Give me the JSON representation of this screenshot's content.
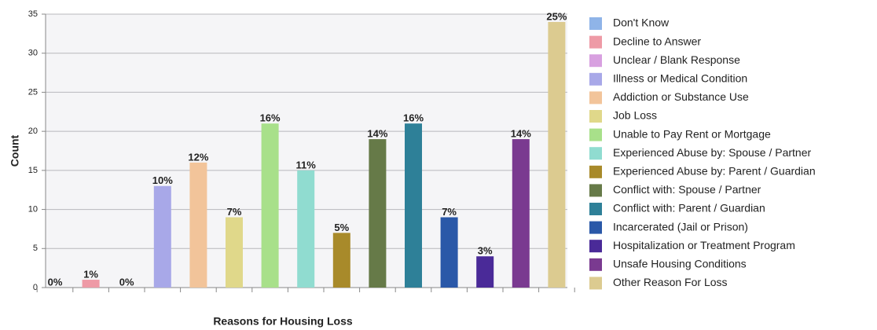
{
  "chart_data": {
    "type": "bar",
    "x_label": "Reasons for Housing Loss",
    "y_label": "Count",
    "categories": [
      "Don't Know",
      "Decline to Answer",
      "Unclear / Blank Response",
      "Illness or Medical Condition",
      "Addiction or Substance Use",
      "Job Loss",
      "Unable to Pay Rent or Mortgage",
      "Experienced Abuse by: Spouse / Partner",
      "Experienced Abuse by: Parent / Guardian",
      "Conflict with: Spouse / Partner",
      "Conflict with: Parent / Guardian",
      "Incarcerated (Jail or Prison)",
      "Hospitalization or Treatment Program",
      "Unsafe Housing Conditions",
      "Other Reason For Loss"
    ],
    "values": [
      0,
      1,
      0,
      13,
      16,
      9,
      21,
      15,
      7,
      19,
      21,
      9,
      4,
      19,
      34
    ],
    "value_labels": [
      "0%",
      "1%",
      "0%",
      "10%",
      "12%",
      "7%",
      "16%",
      "11%",
      "5%",
      "14%",
      "16%",
      "7%",
      "3%",
      "14%",
      "25%"
    ],
    "colors": [
      "#8fb4e8",
      "#ee9aa6",
      "#d8a0e0",
      "#a8a8e8",
      "#f2c49a",
      "#e0d88a",
      "#a8e08a",
      "#90dcd0",
      "#a88a2a",
      "#667a48",
      "#2e8098",
      "#2a58a8",
      "#4a2a98",
      "#7a3a90",
      "#dccb90"
    ],
    "ylim": [
      0,
      35
    ],
    "yticks": [
      0,
      5,
      10,
      15,
      20,
      25,
      30,
      35
    ],
    "grid": true,
    "legend": "right"
  }
}
